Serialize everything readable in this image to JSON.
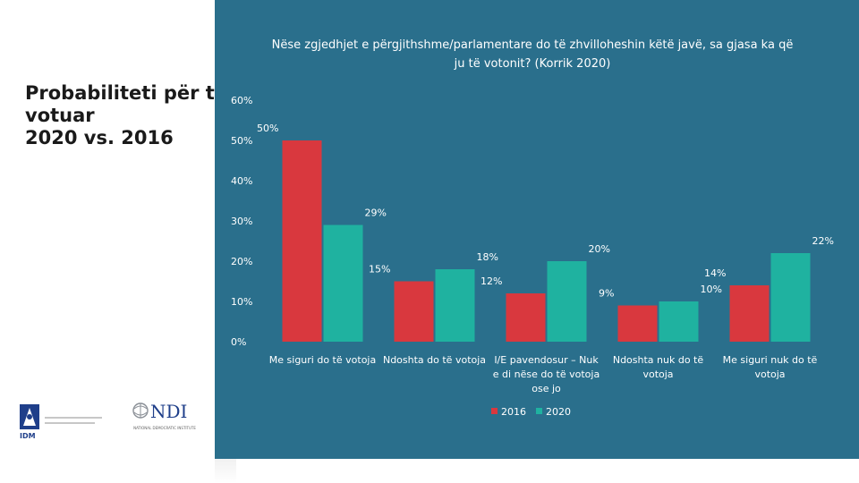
{
  "slide": {
    "title_lines": [
      "Probabiliteti për të",
      "votuar",
      "2020 vs. 2016"
    ]
  },
  "logos": {
    "idm_text": "IDM",
    "ndi_text": "NDI",
    "ndi_subtitle": "NATIONAL DEMOCRATIC INSTITUTE"
  },
  "colors": {
    "panel": "#2a6f8c",
    "series_2016": "#d9383e",
    "series_2020": "#1fb2a0",
    "text": "#ffffff"
  },
  "chart_data": {
    "type": "bar",
    "title": "Nëse zgjedhjet e përgjithshme/parlamentare do të zhvilloheshin këtë javë, sa gjasa ka që ju të votonit? (Korrik 2020)",
    "categories": [
      [
        "Me siguri do të votoja"
      ],
      [
        "Ndoshta do të votoja"
      ],
      [
        "I/E pavendosur – Nuk",
        "e di nëse do të votoja",
        "ose jo"
      ],
      [
        "Ndoshta nuk do të",
        "votoja"
      ],
      [
        "Me siguri nuk do të",
        "votoja"
      ]
    ],
    "series": [
      {
        "name": "2016",
        "values": [
          50,
          15,
          12,
          9,
          14
        ],
        "labels": [
          "50%",
          "15%",
          "12%",
          "9%",
          "14%"
        ]
      },
      {
        "name": "2020",
        "values": [
          29,
          18,
          20,
          10,
          22
        ],
        "labels": [
          "29%",
          "18%",
          "20%",
          "10%",
          "22%"
        ]
      }
    ],
    "y_ticks": [
      0,
      10,
      20,
      30,
      40,
      50,
      60
    ],
    "y_tick_labels": [
      "0%",
      "10%",
      "20%",
      "30%",
      "40%",
      "50%",
      "60%"
    ],
    "ylim": [
      0,
      60
    ],
    "grid": false,
    "legend_position": "bottom"
  }
}
